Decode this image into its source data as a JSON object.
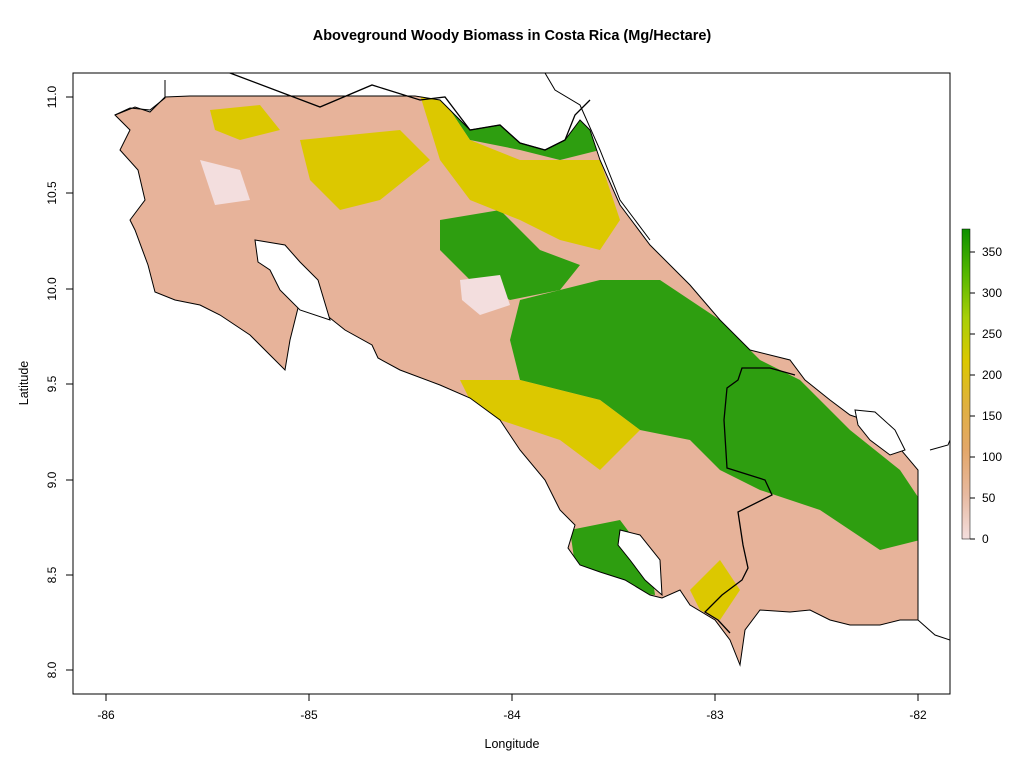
{
  "title": "Aboveground Woody Biomass in Costa Rica (Mg/Hectare)",
  "x_axis": {
    "label": "Longitude",
    "ticks": [
      "-86",
      "-85",
      "-84",
      "-83",
      "-82"
    ]
  },
  "y_axis": {
    "label": "Latitude",
    "ticks": [
      "8.0",
      "8.5",
      "9.0",
      "9.5",
      "10.0",
      "10.5",
      "11.0"
    ]
  },
  "legend": {
    "ticks": [
      "0",
      "50",
      "100",
      "150",
      "200",
      "250",
      "300",
      "350"
    ],
    "colors": [
      "#f3dede",
      "#e7b9a0",
      "#e3a76a",
      "#e0b040",
      "#dcc800",
      "#a8cf08",
      "#55b700",
      "#0d9000"
    ]
  },
  "map": {
    "land_colors": {
      "low": "#e7b39a",
      "mid": "#dcc800",
      "high": "#2e9e10"
    }
  }
}
